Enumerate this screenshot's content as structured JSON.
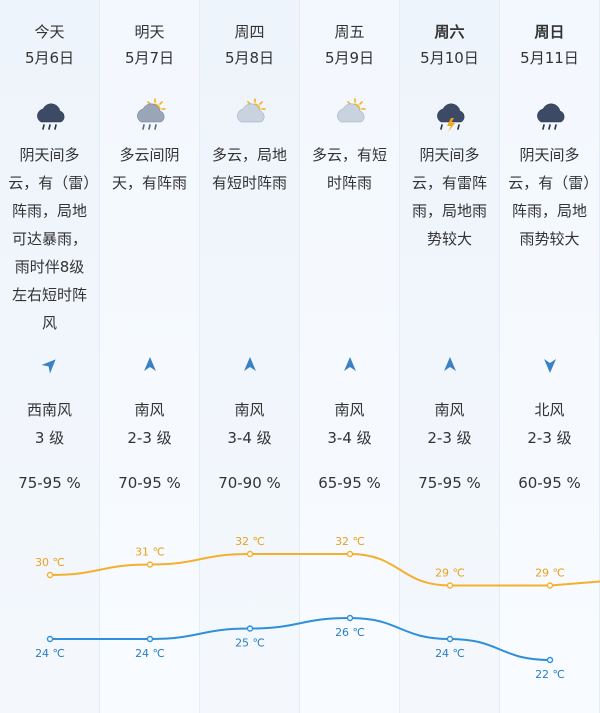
{
  "days": [
    {
      "name": "今天",
      "bold": false,
      "date": "5月6日",
      "icon": "thunder-rain-cloud-icon",
      "desc": "阴天间多云，有（雷）阵雨，局地可达暴雨，雨时伴8级左右短时阵风",
      "wind_dir": "西南风",
      "wind_level": "3 级",
      "humidity": "75-95 %",
      "arrow_rotation": 45
    },
    {
      "name": "明天",
      "bold": false,
      "date": "5月7日",
      "icon": "partly-cloudy-rain-icon",
      "desc": "多云间阴天，有阵雨",
      "wind_dir": "南风",
      "wind_level": "2-3 级",
      "humidity": "70-95 %",
      "arrow_rotation": 0
    },
    {
      "name": "周四",
      "bold": false,
      "date": "5月8日",
      "icon": "partly-cloudy-icon",
      "desc": "多云，局地有短时阵雨",
      "wind_dir": "南风",
      "wind_level": "3-4 级",
      "humidity": "70-90 %",
      "arrow_rotation": 0
    },
    {
      "name": "周五",
      "bold": false,
      "date": "5月9日",
      "icon": "partly-cloudy-icon",
      "desc": "多云，有短时阵雨",
      "wind_dir": "南风",
      "wind_level": "3-4 级",
      "humidity": "65-95 %",
      "arrow_rotation": 0
    },
    {
      "name": "周六",
      "bold": true,
      "date": "5月10日",
      "icon": "thunderstorm-icon",
      "desc": "阴天间多云，有雷阵雨，局地雨势较大",
      "wind_dir": "南风",
      "wind_level": "2-3 级",
      "humidity": "75-95 %",
      "arrow_rotation": 0
    },
    {
      "name": "周日",
      "bold": true,
      "date": "5月11日",
      "icon": "rain-cloud-icon",
      "desc": "阴天间多云，有（雷）阵雨，局地雨势较大",
      "wind_dir": "北风",
      "wind_level": "2-3 级",
      "humidity": "60-95 %",
      "arrow_rotation": 180
    }
  ],
  "temperatures": {
    "high": [
      "30 ℃",
      "31 ℃",
      "32 ℃",
      "32 ℃",
      "29 ℃",
      "29 ℃"
    ],
    "low": [
      "24 ℃",
      "24 ℃",
      "25 ℃",
      "26 ℃",
      "24 ℃",
      "22 ℃"
    ],
    "high_values": [
      30,
      31,
      32,
      32,
      29,
      29
    ],
    "low_values": [
      24,
      24,
      25,
      26,
      24,
      22
    ]
  },
  "colors": {
    "high_line": "#f4b02d",
    "low_line": "#2f8fd8",
    "arrow": "#3b82c4",
    "high_label": "#e9a21d",
    "low_label": "#2a7fc5"
  }
}
